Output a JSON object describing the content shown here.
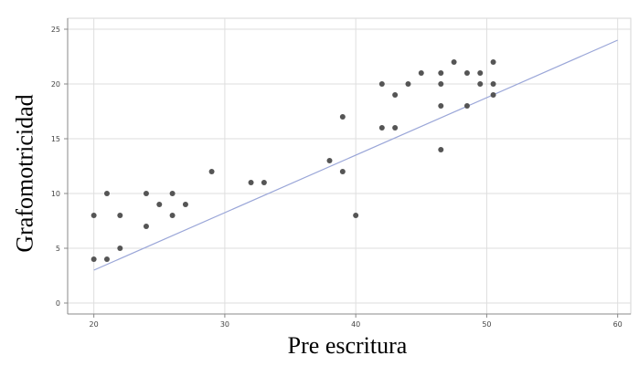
{
  "chart_data": {
    "type": "scatter",
    "title": "",
    "xlabel": "Pre escritura",
    "ylabel": "Grafomotricidad",
    "xlim": [
      18,
      61
    ],
    "ylim": [
      -1,
      26
    ],
    "xticks": [
      20,
      30,
      40,
      50,
      60
    ],
    "xtick_labels": [
      "20",
      "30",
      "40",
      "50",
      "60"
    ],
    "yticks": [
      0,
      5,
      10,
      15,
      20,
      25
    ],
    "ytick_labels": [
      "0",
      "5",
      "10",
      "15",
      "20",
      "25"
    ],
    "grid": true,
    "legend": "none",
    "point_color": "#555555",
    "line_color": "#9aa6d8",
    "points": [
      {
        "x": 20,
        "y": 8
      },
      {
        "x": 20,
        "y": 4
      },
      {
        "x": 21,
        "y": 10
      },
      {
        "x": 21,
        "y": 4
      },
      {
        "x": 22,
        "y": 8
      },
      {
        "x": 22,
        "y": 5
      },
      {
        "x": 24,
        "y": 10
      },
      {
        "x": 24,
        "y": 7
      },
      {
        "x": 25,
        "y": 9
      },
      {
        "x": 26,
        "y": 10
      },
      {
        "x": 26,
        "y": 8
      },
      {
        "x": 27,
        "y": 9
      },
      {
        "x": 29,
        "y": 12
      },
      {
        "x": 32,
        "y": 11
      },
      {
        "x": 33,
        "y": 11
      },
      {
        "x": 38,
        "y": 13
      },
      {
        "x": 39,
        "y": 17
      },
      {
        "x": 39,
        "y": 12
      },
      {
        "x": 40,
        "y": 8
      },
      {
        "x": 42,
        "y": 20
      },
      {
        "x": 42,
        "y": 16
      },
      {
        "x": 43,
        "y": 19
      },
      {
        "x": 43,
        "y": 16
      },
      {
        "x": 44,
        "y": 20
      },
      {
        "x": 45,
        "y": 21
      },
      {
        "x": 46.5,
        "y": 21
      },
      {
        "x": 46.5,
        "y": 20
      },
      {
        "x": 46.5,
        "y": 18
      },
      {
        "x": 46.5,
        "y": 14
      },
      {
        "x": 47.5,
        "y": 22
      },
      {
        "x": 48.5,
        "y": 21
      },
      {
        "x": 48.5,
        "y": 18
      },
      {
        "x": 49.5,
        "y": 21
      },
      {
        "x": 49.5,
        "y": 20
      },
      {
        "x": 50.5,
        "y": 22
      },
      {
        "x": 50.5,
        "y": 20
      },
      {
        "x": 50.5,
        "y": 19
      }
    ],
    "fit_line": {
      "x": [
        20,
        60
      ],
      "y": [
        3,
        24
      ]
    }
  }
}
